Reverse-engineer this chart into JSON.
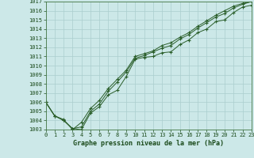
{
  "title": "Graphe pression niveau de la mer (hPa)",
  "xlabel_hours": [
    0,
    1,
    2,
    3,
    4,
    5,
    6,
    7,
    8,
    9,
    10,
    11,
    12,
    13,
    14,
    15,
    16,
    17,
    18,
    19,
    20,
    21,
    22,
    23
  ],
  "ylim": [
    1003,
    1017
  ],
  "xlim": [
    0,
    23
  ],
  "yticks": [
    1003,
    1004,
    1005,
    1006,
    1007,
    1008,
    1009,
    1010,
    1011,
    1012,
    1013,
    1014,
    1015,
    1016,
    1017
  ],
  "bg_color": "#cce8e8",
  "grid_color": "#aacece",
  "line_color": "#2a5e2a",
  "line1": [
    1006.0,
    1004.5,
    1004.0,
    1003.1,
    1003.0,
    1004.8,
    1005.5,
    1006.8,
    1007.3,
    1008.8,
    1010.7,
    1010.9,
    1011.0,
    1011.4,
    1011.5,
    1012.3,
    1012.8,
    1013.6,
    1014.0,
    1014.8,
    1015.0,
    1015.8,
    1016.4,
    1016.6
  ],
  "line2": [
    1006.0,
    1004.5,
    1004.0,
    1003.1,
    1003.3,
    1005.0,
    1005.8,
    1007.2,
    1008.2,
    1009.3,
    1010.8,
    1011.1,
    1011.5,
    1011.9,
    1012.2,
    1012.9,
    1013.4,
    1014.1,
    1014.7,
    1015.3,
    1015.7,
    1016.3,
    1016.7,
    1017.0
  ],
  "line3": [
    1006.0,
    1004.5,
    1004.1,
    1003.0,
    1003.8,
    1005.3,
    1006.2,
    1007.5,
    1008.5,
    1009.5,
    1011.0,
    1011.3,
    1011.6,
    1012.2,
    1012.5,
    1013.1,
    1013.6,
    1014.3,
    1014.9,
    1015.5,
    1016.0,
    1016.5,
    1016.8,
    1017.0
  ],
  "title_fontsize": 6.0,
  "tick_fontsize": 5.0,
  "title_color": "#1a4a1a",
  "axis_label_color": "#1a4a1a"
}
